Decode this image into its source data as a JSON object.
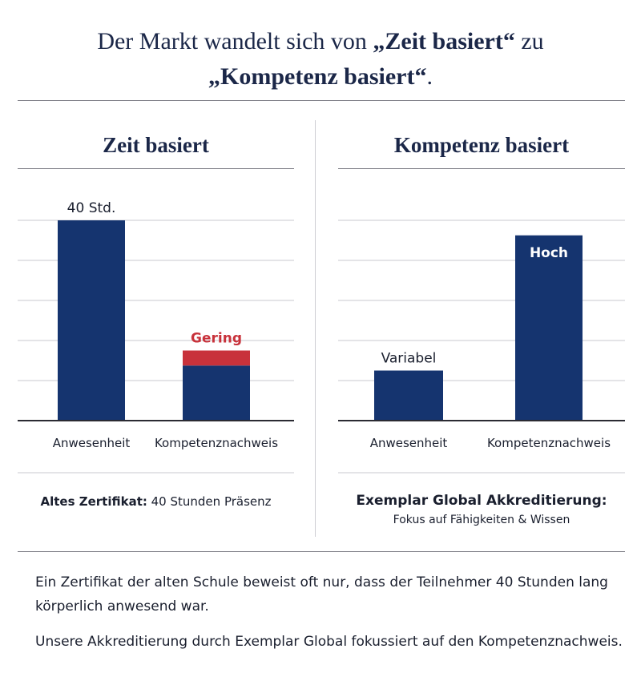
{
  "title": {
    "line1_prefix": "Der Markt wandelt sich von ",
    "line1_bold": "„Zeit basiert“",
    "line1_suffix": " zu",
    "line2_bold": "„Kompetenz basiert“",
    "line2_suffix": "."
  },
  "chart_data": [
    {
      "type": "bar",
      "title": "Zeit basiert",
      "categories": [
        "Anwesenheit",
        "Kompetenznachweis"
      ],
      "series": [
        {
          "name": "Anwesenheit",
          "values": [
            40,
            11
          ]
        },
        {
          "name": "Gering",
          "values": [
            0,
            3
          ]
        }
      ],
      "data_labels": [
        "40 Std.",
        "Gering"
      ],
      "ylim": [
        0,
        42
      ],
      "grid": true
    },
    {
      "type": "bar",
      "title": "Kompetenz basiert",
      "categories": [
        "Anwesenheit",
        "Kompetenznachweis"
      ],
      "values": [
        10,
        37
      ],
      "data_labels": [
        "Variabel",
        "Hoch"
      ],
      "ylim": [
        0,
        42
      ],
      "grid": true
    }
  ],
  "left_caption": {
    "bold": "Altes Zertifikat:",
    "text": " 40 Stunden Präsenz"
  },
  "right_caption": {
    "bold": "Exemplar Global Akkreditierung:",
    "sub": "Fokus auf Fähigkeiten & Wissen"
  },
  "footer": {
    "p1": "Ein Zertifikat der alten Schule beweist oft nur, dass der Teilnehmer 40 Stunden lang körperlich anwesend war.",
    "p2": "Unsere Akkreditierung durch Exemplar Global fokussiert auf den Kompetenznachweis."
  },
  "colors": {
    "navy": "#15346f",
    "red": "#c8323b",
    "grid": "#c9c9cf",
    "axis": "#2b2b33"
  }
}
